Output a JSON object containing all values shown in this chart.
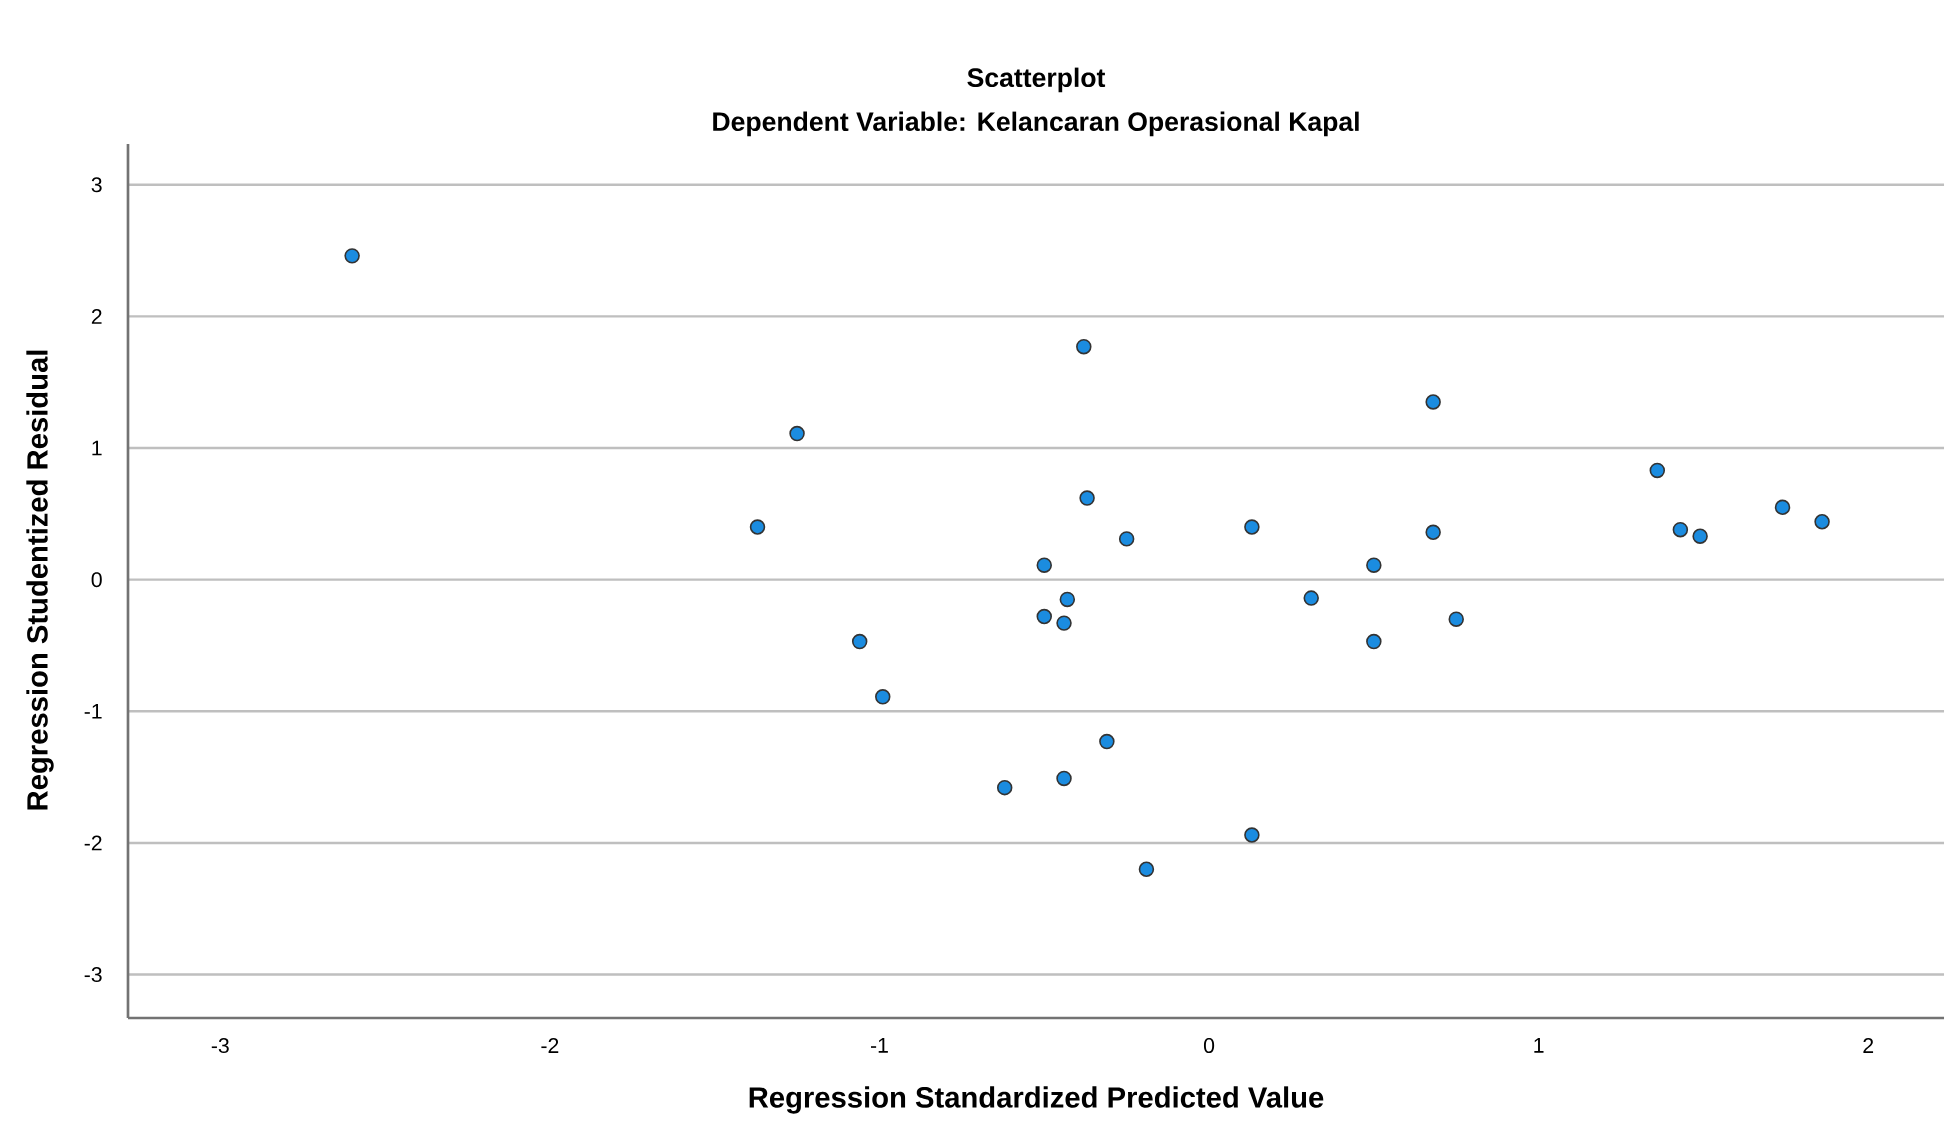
{
  "chart_data": {
    "type": "scatter",
    "title": "Scatterplot",
    "subtitle": "Dependent Variable: Kelancaran Operasional Kapal",
    "xlabel": "Regression Standardized Predicted Value",
    "ylabel": "Regression Studentized Residual",
    "xlim": [
      -3.28,
      2.23
    ],
    "ylim": [
      -3.33,
      3.31
    ],
    "xticks": [
      -3,
      -2,
      -1,
      0,
      1,
      2
    ],
    "yticks": [
      -3,
      -2,
      -1,
      0,
      1,
      2,
      3
    ],
    "grid": "y",
    "marker": "circle",
    "series": [
      {
        "color": "#1b8ce0",
        "x": [
          -2.6,
          -1.25,
          -1.37,
          -0.38,
          0.68,
          -0.37,
          -0.25,
          0.12,
          0.13,
          -0.5,
          0.5,
          0.68,
          1.36,
          1.43,
          1.49,
          1.74,
          1.86,
          -0.43,
          -0.5,
          -0.44,
          0.31,
          0.75,
          0.5,
          -1.06,
          -0.99,
          -0.62,
          -0.31,
          -0.44,
          0.13,
          -0.19
        ],
        "values": [
          2.46,
          1.11,
          0.4,
          1.77,
          1.35,
          0.62,
          0.31,
          null,
          0.4,
          0.11,
          0.11,
          0.36,
          0.83,
          0.38,
          0.33,
          0.55,
          0.44,
          -0.15,
          -0.28,
          -0.33,
          -0.14,
          -0.3,
          -0.47,
          -0.47,
          -0.89,
          -1.58,
          -1.23,
          -1.51,
          -1.94,
          -2.2
        ]
      }
    ]
  }
}
